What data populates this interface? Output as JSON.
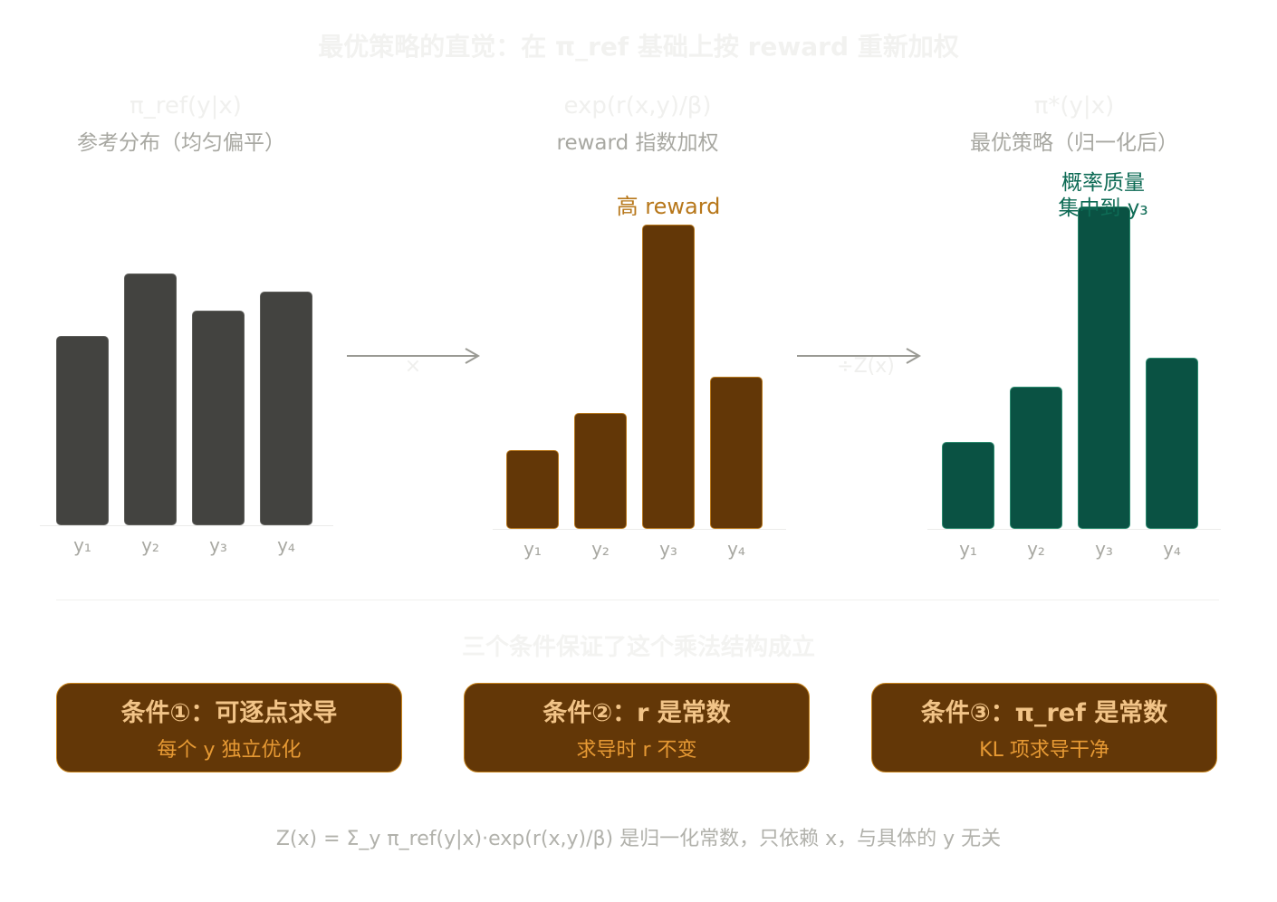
{
  "title": "最优策略的直觉：在 π_ref 基础上按 reward 重新加权",
  "panels": [
    {
      "formula": "π_ref(y|x)",
      "label": "参考分布（均匀偏平）",
      "categories": [
        "y₁",
        "y₂",
        "y₃",
        "y₄"
      ],
      "values": [
        0.6,
        0.8,
        0.68,
        0.74
      ],
      "color": "#434340"
    },
    {
      "formula": "exp(r(x,y)/β)",
      "label": "reward 指数加权",
      "categories": [
        "y₁",
        "y₂",
        "y₃",
        "y₄"
      ],
      "values": [
        0.26,
        0.38,
        1.0,
        0.5
      ],
      "color": "#633707",
      "annotation": "高 reward"
    },
    {
      "formula": "π*(y|x)",
      "label": "最优策略（归一化后）",
      "categories": [
        "y₁",
        "y₂",
        "y₃",
        "y₄"
      ],
      "values": [
        0.27,
        0.44,
        1.0,
        0.53
      ],
      "color": "#0a5243",
      "annotation_line1": "概率质量",
      "annotation_line2": "集中到 y₃"
    }
  ],
  "operators": [
    "×",
    "÷Z(x)"
  ],
  "subtitle": "三个条件保证了这个乘法结构成立",
  "conditions": [
    {
      "title": "条件①：可逐点求导",
      "sub": "每个 y 独立优化"
    },
    {
      "title": "条件②：r 是常数",
      "sub": "求导时 r 不变"
    },
    {
      "title": "条件③：π_ref 是常数",
      "sub": "KL 项求导干净"
    }
  ],
  "footnote": "Z(x) = Σ_y π_ref(y|x)·exp(r(x,y)/β)    是归一化常数，只依赖 x，与具体的 y 无关",
  "colors": {
    "accent_brown": "#633707",
    "accent_green": "#0a5243",
    "neutral_bar": "#434340",
    "annotation_orange": "#b7771a"
  }
}
